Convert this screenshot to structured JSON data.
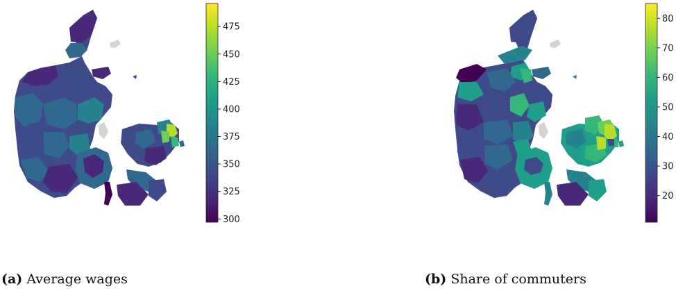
{
  "panels": [
    {
      "label": "(a)",
      "caption": "Average wages",
      "colorbar": {
        "min": 297,
        "max": 496,
        "ticks": [
          300,
          325,
          350,
          375,
          400,
          425,
          450,
          475
        ]
      },
      "colormap": "viridis"
    },
    {
      "label": "(b)",
      "caption": "Share of commuters",
      "colorbar": {
        "min": 11,
        "max": 85,
        "ticks": [
          20,
          30,
          40,
          50,
          60,
          70,
          80
        ]
      },
      "colormap": "viridis"
    }
  ],
  "colors": {
    "viridis": [
      "#440154",
      "#482878",
      "#3e4a89",
      "#31688e",
      "#26828e",
      "#1f9e89",
      "#35b779",
      "#6ece58",
      "#b5de2b",
      "#fde725"
    ],
    "island_grey": "#d3d3d3"
  }
}
